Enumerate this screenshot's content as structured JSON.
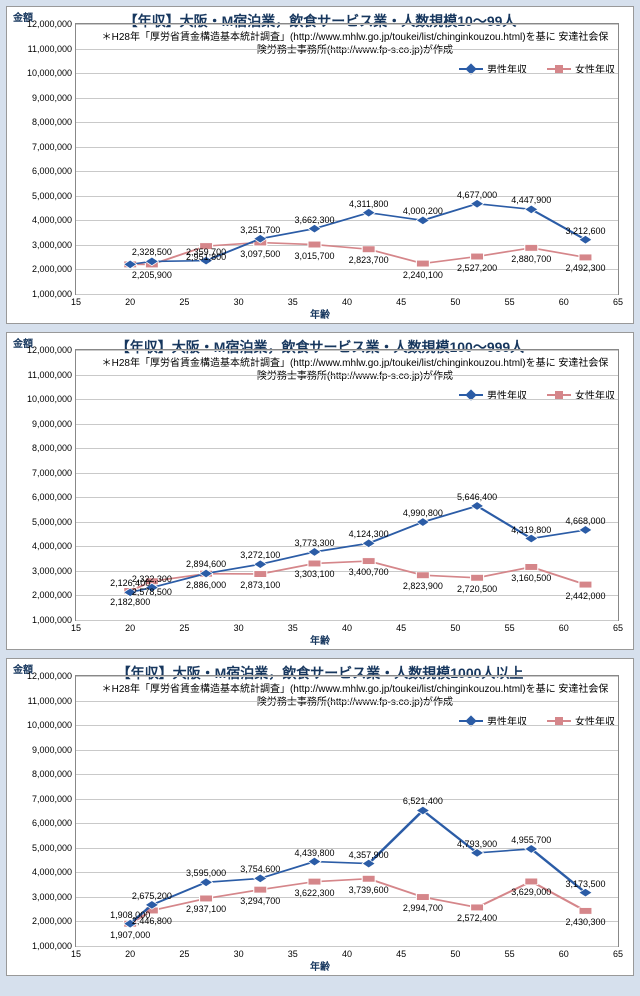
{
  "page": {
    "background": "#d6e0ed",
    "panel_bg": "#ffffff",
    "grid_color": "#c9c9c9",
    "border_color": "#888888"
  },
  "axis": {
    "y_label": "金額",
    "x_label": "年齢",
    "xlim": [
      15,
      65
    ],
    "xticks": [
      15,
      20,
      25,
      30,
      35,
      40,
      45,
      50,
      55,
      60,
      65
    ],
    "ylim": [
      1000000,
      12000000
    ],
    "yticks": [
      1000000,
      2000000,
      3000000,
      4000000,
      5000000,
      6000000,
      7000000,
      8000000,
      9000000,
      10000000,
      11000000,
      12000000
    ],
    "ytick_labels": [
      "1,000,000",
      "2,000,000",
      "3,000,000",
      "4,000,000",
      "5,000,000",
      "6,000,000",
      "7,000,000",
      "8,000,000",
      "9,000,000",
      "10,000,000",
      "11,000,000",
      "12,000,000"
    ]
  },
  "series_style": {
    "male": {
      "name": "男性年収",
      "color": "#2b5ca6",
      "marker": "diamond",
      "label_offset": -14
    },
    "female": {
      "name": "女性年収",
      "color": "#d5868a",
      "marker": "square",
      "label_offset": 6
    }
  },
  "subtitle": "＊H28年「厚労省賃金構造基本統計調査」(http://www.mhlw.go.jp/toukei/list/chinginkouzou.html)を基に\n安達社会保険労務士事務所(http://www.fp-s.co.jp)が作成",
  "charts": [
    {
      "title": "【年収】大阪・M宿泊業，飲食サービス業・人数規模10～99人",
      "x": [
        20,
        22,
        27,
        32,
        37,
        42,
        47,
        52,
        57,
        62
      ],
      "male": [
        2208000,
        2328500,
        2359700,
        3251700,
        3662300,
        4311800,
        4000200,
        4677000,
        4447900,
        3212600
      ],
      "female": [
        2208000,
        2205900,
        2951800,
        3097500,
        3015700,
        2823700,
        2240100,
        2527200,
        2880700,
        2492300
      ],
      "male_labels": [
        "2,208,000",
        "2,328,500",
        "2,359,700",
        "3,251,700",
        "3,662,300",
        "4,311,800",
        "4,000,200",
        "4,677,000",
        "4,447,900",
        "3,212,600"
      ],
      "female_labels": [
        "",
        "2,205,900",
        "2,951,800",
        "3,097,500",
        "3,015,700",
        "2,823,700",
        "2,240,100",
        "2,527,200",
        "2,880,700",
        "2,492,300"
      ],
      "male_label_skip": [
        true,
        false,
        false,
        false,
        false,
        false,
        false,
        false,
        false,
        false
      ]
    },
    {
      "title": "【年収】大阪・M宿泊業，飲食サービス業・人数規模100～999人",
      "x": [
        20,
        22,
        27,
        32,
        37,
        42,
        47,
        52,
        57,
        62
      ],
      "male": [
        2126400,
        2322300,
        2894600,
        3272100,
        3773300,
        4124300,
        4990800,
        5646400,
        4319800,
        4668000
      ],
      "female": [
        2182800,
        2578500,
        2886000,
        2873100,
        3303100,
        3400700,
        2823900,
        2720500,
        3160500,
        2442000
      ],
      "male_labels": [
        "2,126,400",
        "2,322,300",
        "2,894,600",
        "3,272,100",
        "3,773,300",
        "4,124,300",
        "4,990,800",
        "5,646,400",
        "4,319,800",
        "4,668,000"
      ],
      "female_labels": [
        "2,182,800",
        "2,578,500",
        "2,886,000",
        "2,873,100",
        "3,303,100",
        "3,400,700",
        "2,823,900",
        "2,720,500",
        "3,160,500",
        "2,442,000"
      ],
      "male_label_skip": [
        false,
        false,
        false,
        false,
        false,
        false,
        false,
        false,
        false,
        false
      ]
    },
    {
      "title": "【年収】大阪・M宿泊業，飲食サービス業・人数規模1000人以上",
      "x": [
        20,
        22,
        27,
        32,
        37,
        42,
        47,
        52,
        57,
        62
      ],
      "male": [
        1908000,
        2675200,
        3595000,
        3754600,
        4439800,
        4357900,
        6521400,
        4793900,
        4955700,
        3173500
      ],
      "female": [
        1907000,
        2446800,
        2937100,
        3294700,
        3622300,
        3739600,
        2994700,
        2572400,
        3629000,
        2430300
      ],
      "male_labels": [
        "1,908,000",
        "2,675,200",
        "3,595,000",
        "3,754,600",
        "4,439,800",
        "4,357,900",
        "6,521,400",
        "4,793,900",
        "4,955,700",
        "3,173,500"
      ],
      "female_labels": [
        "1,907,000",
        "2,446,800",
        "2,937,100",
        "3,294,700",
        "3,622,300",
        "3,739,600",
        "2,994,700",
        "2,572,400",
        "3,629,000",
        "2,430,300"
      ],
      "male_label_skip": [
        false,
        false,
        false,
        false,
        false,
        false,
        false,
        false,
        false,
        false
      ]
    }
  ]
}
